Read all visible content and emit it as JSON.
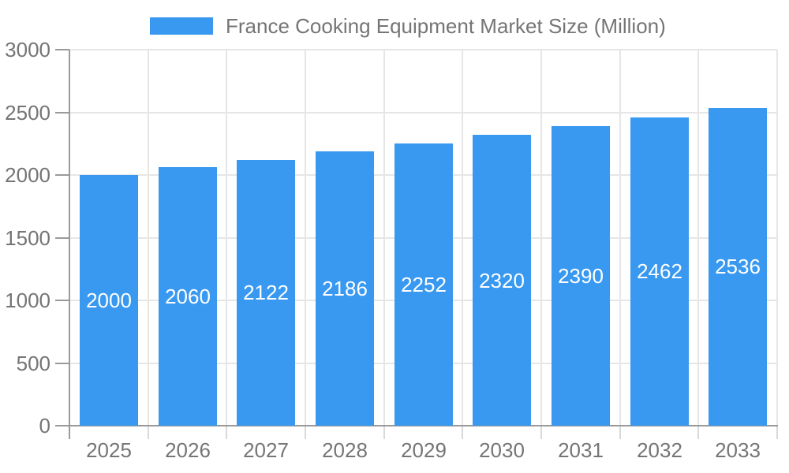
{
  "chart_data": {
    "type": "bar",
    "title": "",
    "legend": "France Cooking Equipment Market Size (Million)",
    "legend_position": "top",
    "categories": [
      "2025",
      "2026",
      "2027",
      "2028",
      "2029",
      "2030",
      "2031",
      "2032",
      "2033"
    ],
    "series": [
      {
        "name": "France Cooking Equipment Market Size (Million)",
        "values": [
          2000,
          2060,
          2122,
          2186,
          2252,
          2320,
          2390,
          2462,
          2536
        ]
      }
    ],
    "xlabel": "",
    "ylabel": "",
    "ylim": [
      0,
      3000
    ],
    "ytick_step": 500,
    "yticks": [
      0,
      500,
      1000,
      1500,
      2000,
      2500,
      3000
    ],
    "grid": true,
    "value_labels_inside_bars": true,
    "colors": {
      "bar": "#3999F0",
      "grid": "#e6e6e6",
      "axis": "#9a9a9a",
      "x_tick": "#d9d9d9",
      "tick_label": "#757575",
      "legend_text": "#757575",
      "value_label": "#ffffff",
      "background": "#ffffff"
    }
  }
}
